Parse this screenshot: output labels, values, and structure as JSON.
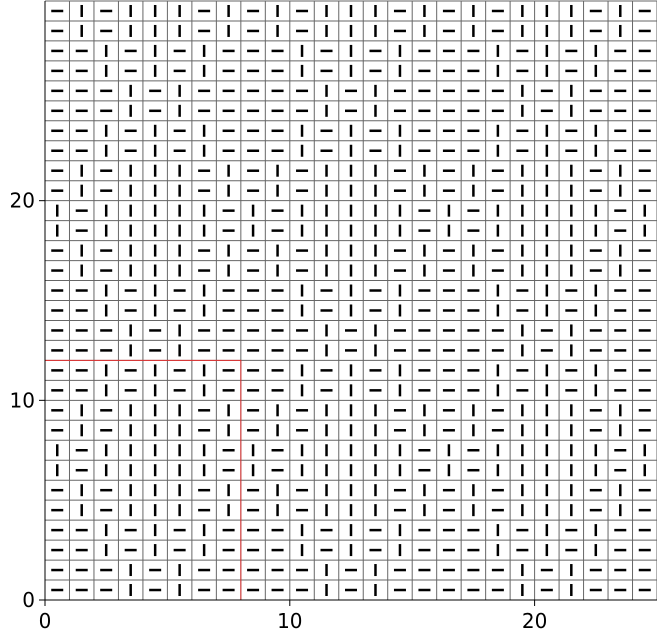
{
  "chart_data": {
    "type": "heatmap",
    "title": "",
    "xlabel": "",
    "ylabel": "",
    "xlim": [
      0,
      25
    ],
    "ylim": [
      0,
      30
    ],
    "x_ticks": [
      "0",
      "10",
      "20"
    ],
    "y_ticks": [
      "0",
      "10",
      "20"
    ],
    "grid": true,
    "legend": "none",
    "cell_encoding": {
      "-": "horizontal",
      "|": "vertical"
    },
    "rows_top_to_bottom": [
      "-|-|||-|-|-|||-|-|-|||-|-",
      "-|-|||-|-|-|||-|-|-|||-|-",
      "--|-|-|---|-|-|---|-|-|--",
      "--|-|-|---|-|-|---|-|-|--",
      "---|-|-----|-|-----|-|---",
      "---|-|-----|-|-----|-|---",
      "--|-|-|---|-|-|---|-|-|--",
      "--|-|-|---|-|-|---|-|-|--",
      "-|-|||-|-|-|||-|-|-|||-|-",
      "-|-|||-|-|-|||-|-|-|||-|-",
      "|-|||||-|-|||||-|-|||||-|",
      "|-|||||-|-|||||-|-|||||-|",
      "-|-|||-|-|-|||-|-|-|||-|-",
      "-|-|||-|-|-|||-|-|-|||-|-",
      "--|-|-|---|-|-|---|-|-|--",
      "--|-|-|---|-|-|---|-|-|--",
      "---|-|-----|-|-----|-|---",
      "---|-|-----|-|-----|-|---",
      "--|-|-|---|-|-|---|-|-|--",
      "--|-|-|---|-|-|---|-|-|--",
      "-|-|||-|-|-|||-|-|-|||-|-",
      "-|-|||-|-|-|||-|-|-|||-|-",
      "|-|||||-|-|||||-|-|||||-|",
      "|-|||||-|-|||||-|-|||||-|",
      "-|-|||-|-|-|||-|-|-|||-|-",
      "-|-|||-|-|-|||-|-|-|||-|-",
      "--|-|-|---|-|-|---|-|-|--",
      "--|-|-|---|-|-|---|-|-|--",
      "---|-|-----|-|-----|-|---",
      "---|-|-----|-|-----|-|---"
    ],
    "highlight_region": {
      "x": [
        0,
        8
      ],
      "y": [
        0,
        12
      ],
      "color": "#e03030"
    },
    "colors": {
      "grid": "#666666",
      "marks": "#000000"
    }
  }
}
